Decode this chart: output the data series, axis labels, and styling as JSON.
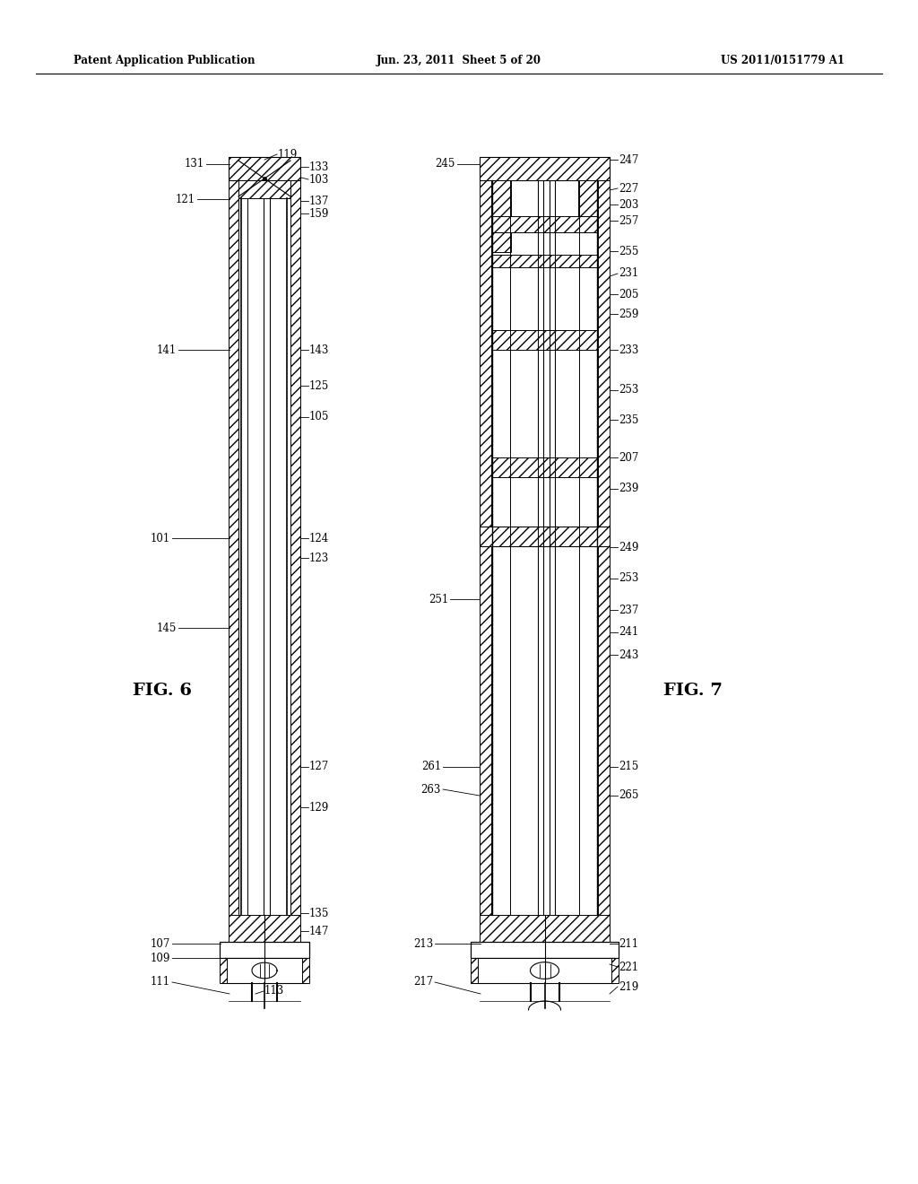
{
  "page_header_left": "Patent Application Publication",
  "page_header_center": "Jun. 23, 2011  Sheet 5 of 20",
  "page_header_right": "US 2011/0151779 A1",
  "fig6_label": "FIG. 6",
  "fig7_label": "FIG. 7",
  "background": "#ffffff",
  "line_color": "#000000"
}
